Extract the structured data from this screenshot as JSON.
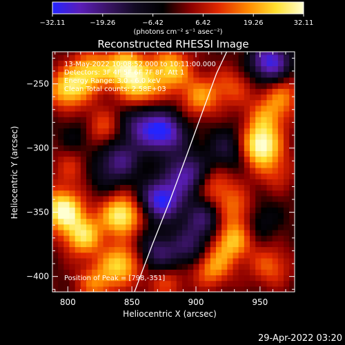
{
  "chart_data": {
    "type": "heatmap",
    "title": "Reconstructed RHESSI Image",
    "xlabel": "Heliocentric X (arcsec)",
    "ylabel": "Heliocentric Y (arcsec)",
    "xlim": [
      788,
      977
    ],
    "ylim": [
      -412,
      -225
    ],
    "xticks": [
      800,
      850,
      900,
      950
    ],
    "yticks": [
      -250,
      -300,
      -350,
      -400
    ],
    "ytick_labels": [
      "−250",
      "−300",
      "−350",
      "−400"
    ],
    "colorbar": {
      "ticks": [
        "−32.11",
        "−19.26",
        "−6.42",
        "6.42",
        "19.26",
        "32.11"
      ],
      "range": [
        -32.11,
        32.11
      ],
      "unit": "(photons cm⁻² s⁻¹ asec⁻²)",
      "colormap": [
        "#2424ff",
        "#5a1db8",
        "#3a1466",
        "#120a22",
        "#000000",
        "#8a0000",
        "#e02800",
        "#ff8a00",
        "#ffe030",
        "#ffffd0"
      ]
    },
    "annotations": [
      "13-May-2022 10:08:52.000 to 10:11:00.000",
      "Detectors: 3F 4F 5F 6F 7F 8F, Att 1",
      "Energy Range: 3.0 - 6.0 keV",
      "Clean   Total counts: 2.58E+03",
      "Position of Peak = [798,-351]"
    ],
    "limb": [
      [
        852,
        -412
      ],
      [
        866,
        -375
      ],
      [
        880,
        -340
      ],
      [
        893,
        -305
      ],
      [
        905,
        -272
      ],
      [
        916,
        -242
      ],
      [
        924,
        -225
      ]
    ],
    "peak": [
      798,
      -351
    ],
    "blobs": [
      {
        "x": 800,
        "y": -254,
        "v": 25
      },
      {
        "x": 818,
        "y": -240,
        "v": 22
      },
      {
        "x": 845,
        "y": -238,
        "v": 28
      },
      {
        "x": 858,
        "y": -254,
        "v": 20
      },
      {
        "x": 880,
        "y": -238,
        "v": 24
      },
      {
        "x": 903,
        "y": -260,
        "v": 18
      },
      {
        "x": 928,
        "y": -252,
        "v": 12
      },
      {
        "x": 955,
        "y": -276,
        "v": 16
      },
      {
        "x": 950,
        "y": -298,
        "v": 32
      },
      {
        "x": 968,
        "y": -258,
        "v": 15
      },
      {
        "x": 962,
        "y": -318,
        "v": 10
      },
      {
        "x": 825,
        "y": -285,
        "v": 16
      },
      {
        "x": 803,
        "y": -315,
        "v": 10
      },
      {
        "x": 796,
        "y": -348,
        "v": 32
      },
      {
        "x": 812,
        "y": -368,
        "v": 25
      },
      {
        "x": 842,
        "y": -352,
        "v": 30
      },
      {
        "x": 842,
        "y": -390,
        "v": 24
      },
      {
        "x": 822,
        "y": -405,
        "v": 16
      },
      {
        "x": 876,
        "y": -404,
        "v": 12
      },
      {
        "x": 912,
        "y": -392,
        "v": 20
      },
      {
        "x": 928,
        "y": -372,
        "v": 22
      },
      {
        "x": 932,
        "y": -348,
        "v": 16
      },
      {
        "x": 958,
        "y": -392,
        "v": 14
      },
      {
        "x": 915,
        "y": -330,
        "v": 14
      },
      {
        "x": 876,
        "y": -288,
        "v": -28
      },
      {
        "x": 873,
        "y": -340,
        "v": -32
      },
      {
        "x": 893,
        "y": -320,
        "v": -24
      },
      {
        "x": 842,
        "y": -308,
        "v": -18
      },
      {
        "x": 858,
        "y": -282,
        "v": -20
      },
      {
        "x": 906,
        "y": -355,
        "v": -18
      },
      {
        "x": 896,
        "y": -378,
        "v": -16
      },
      {
        "x": 870,
        "y": -382,
        "v": -18
      },
      {
        "x": 925,
        "y": -300,
        "v": -14
      },
      {
        "x": 958,
        "y": -233,
        "v": -30
      },
      {
        "x": 812,
        "y": -290,
        "v": -10
      },
      {
        "x": 948,
        "y": -355,
        "v": -10
      },
      {
        "x": 828,
        "y": -320,
        "v": -8
      }
    ]
  },
  "footer": {
    "timestamp": "29-Apr-2022 03:20"
  }
}
